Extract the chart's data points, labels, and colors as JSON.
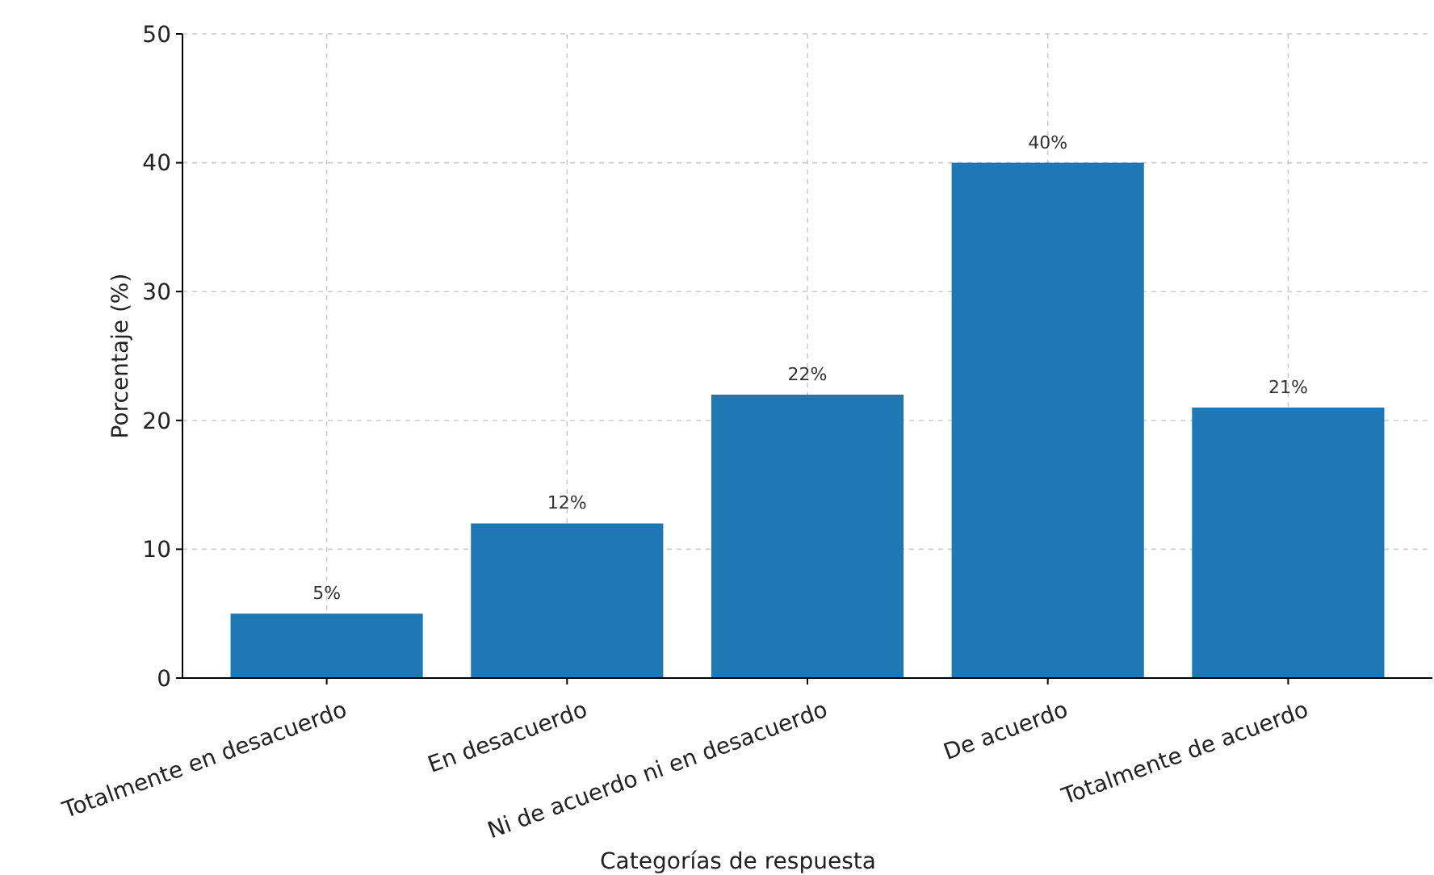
{
  "chart_data": {
    "type": "bar",
    "xlabel": "Categorías de respuesta",
    "ylabel": "Porcentaje (%)",
    "categories": [
      "Totalmente en desacuerdo",
      "En desacuerdo",
      "Ni de acuerdo ni en desacuerdo",
      "De acuerdo",
      "Totalmente de acuerdo"
    ],
    "values": [
      5,
      12,
      22,
      40,
      21
    ],
    "value_labels": [
      "5%",
      "12%",
      "22%",
      "40%",
      "21%"
    ],
    "color": "#1f77b4",
    "ylim": [
      0,
      50
    ],
    "yticks": [
      0,
      10,
      20,
      30,
      40,
      50
    ],
    "grid": true
  }
}
